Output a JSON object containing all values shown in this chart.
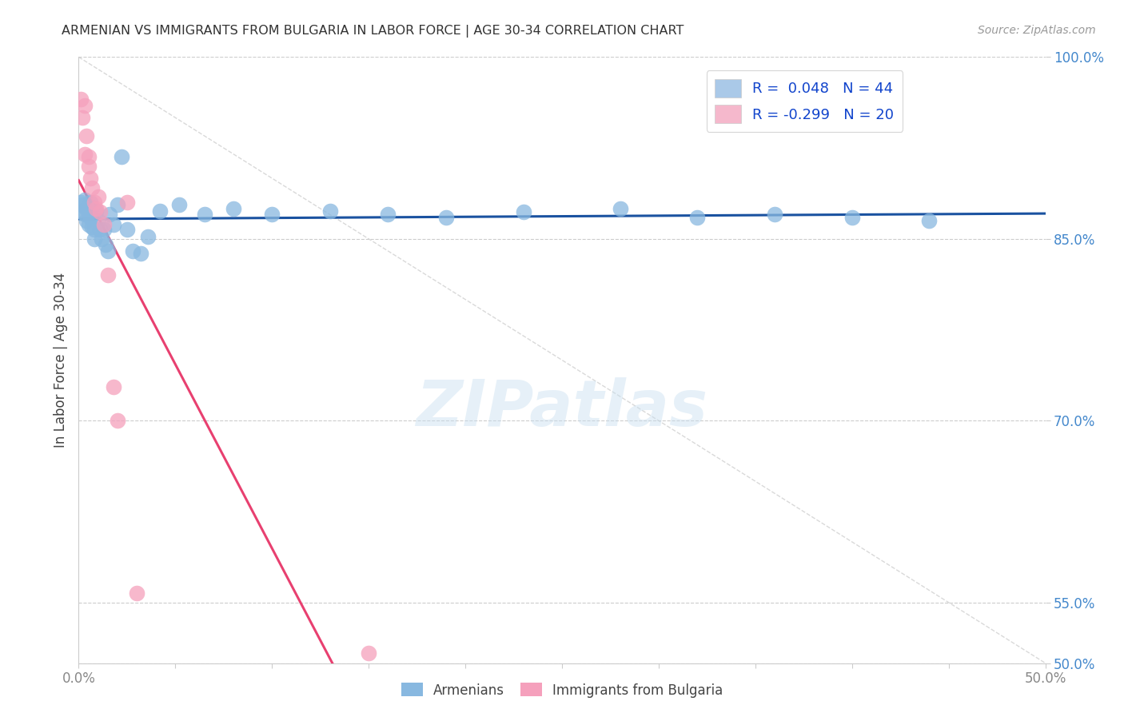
{
  "title": "ARMENIAN VS IMMIGRANTS FROM BULGARIA IN LABOR FORCE | AGE 30-34 CORRELATION CHART",
  "source": "Source: ZipAtlas.com",
  "ylabel": "In Labor Force | Age 30-34",
  "xmin": 0.0,
  "xmax": 0.5,
  "ymin": 0.5,
  "ymax": 1.0,
  "watermark_text": "ZIPatlas",
  "legend_entries": [
    {
      "label": "R =  0.048   N = 44",
      "facecolor": "#aac9e8"
    },
    {
      "label": "R = -0.299   N = 20",
      "facecolor": "#f5b8cc"
    }
  ],
  "legend_bottom_labels": [
    "Armenians",
    "Immigrants from Bulgaria"
  ],
  "armenian_color": "#88b8e0",
  "bulgarian_color": "#f5a0bc",
  "armenian_line_color": "#1a52a0",
  "bulgarian_line_color": "#e84070",
  "grid_color": "#cccccc",
  "background_color": "#ffffff",
  "title_color": "#333333",
  "axis_label_color": "#444444",
  "right_tick_color": "#4488cc",
  "bottom_tick_color": "#888888",
  "diag_color": "#d0d0d0",
  "armenian_x": [
    0.001,
    0.002,
    0.002,
    0.003,
    0.003,
    0.004,
    0.004,
    0.005,
    0.005,
    0.006,
    0.006,
    0.007,
    0.007,
    0.008,
    0.008,
    0.009,
    0.01,
    0.011,
    0.012,
    0.013,
    0.014,
    0.015,
    0.016,
    0.018,
    0.02,
    0.022,
    0.025,
    0.028,
    0.032,
    0.036,
    0.042,
    0.052,
    0.065,
    0.08,
    0.1,
    0.13,
    0.16,
    0.19,
    0.23,
    0.28,
    0.32,
    0.36,
    0.4,
    0.44
  ],
  "armenian_y": [
    0.88,
    0.878,
    0.872,
    0.882,
    0.87,
    0.875,
    0.865,
    0.873,
    0.862,
    0.88,
    0.868,
    0.876,
    0.86,
    0.858,
    0.85,
    0.873,
    0.865,
    0.858,
    0.85,
    0.858,
    0.845,
    0.84,
    0.87,
    0.862,
    0.878,
    0.918,
    0.858,
    0.84,
    0.838,
    0.852,
    0.873,
    0.878,
    0.87,
    0.875,
    0.87,
    0.873,
    0.87,
    0.868,
    0.872,
    0.875,
    0.868,
    0.87,
    0.868,
    0.865
  ],
  "bulgarian_x": [
    0.001,
    0.002,
    0.003,
    0.003,
    0.004,
    0.005,
    0.005,
    0.006,
    0.007,
    0.008,
    0.009,
    0.01,
    0.011,
    0.013,
    0.015,
    0.018,
    0.02,
    0.025,
    0.03,
    0.15
  ],
  "bulgarian_y": [
    0.965,
    0.95,
    0.96,
    0.92,
    0.935,
    0.91,
    0.918,
    0.9,
    0.892,
    0.88,
    0.875,
    0.885,
    0.872,
    0.862,
    0.82,
    0.728,
    0.7,
    0.88,
    0.558,
    0.508
  ],
  "xticks": [
    0.0,
    0.05,
    0.1,
    0.15,
    0.2,
    0.25,
    0.3,
    0.35,
    0.4,
    0.45,
    0.5
  ],
  "xtick_labels_show": [
    "0.0%",
    "50.0%"
  ],
  "ytick_positions": [
    0.5,
    0.55,
    0.7,
    0.85,
    1.0
  ],
  "ytick_labels": [
    "50.0%",
    "55.0%",
    "70.0%",
    "85.0%",
    "100.0%"
  ]
}
